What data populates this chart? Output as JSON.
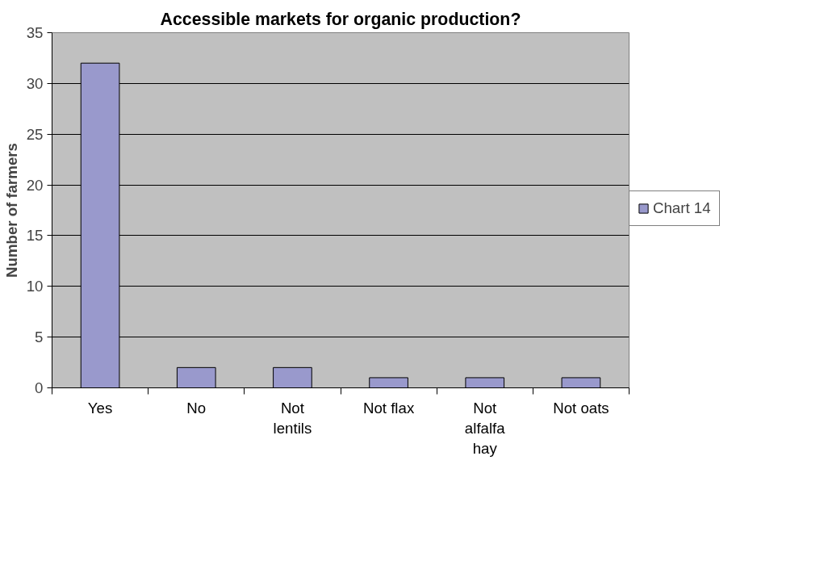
{
  "chart_data": {
    "type": "bar",
    "title": "Accessible markets for organic production?",
    "ylabel": "Number of farmers",
    "categories": [
      "Yes",
      "No",
      "Not lentils",
      "Not flax",
      "Not alfalfa hay",
      "Not oats"
    ],
    "series": [
      {
        "name": "Chart 14",
        "color": "#9999cc",
        "values": [
          32,
          2,
          2,
          1,
          1,
          1
        ]
      }
    ],
    "ylim": [
      0,
      35
    ],
    "yticks": [
      0,
      5,
      10,
      15,
      20,
      25,
      30,
      35
    ],
    "grid": "y",
    "legend": "right"
  }
}
